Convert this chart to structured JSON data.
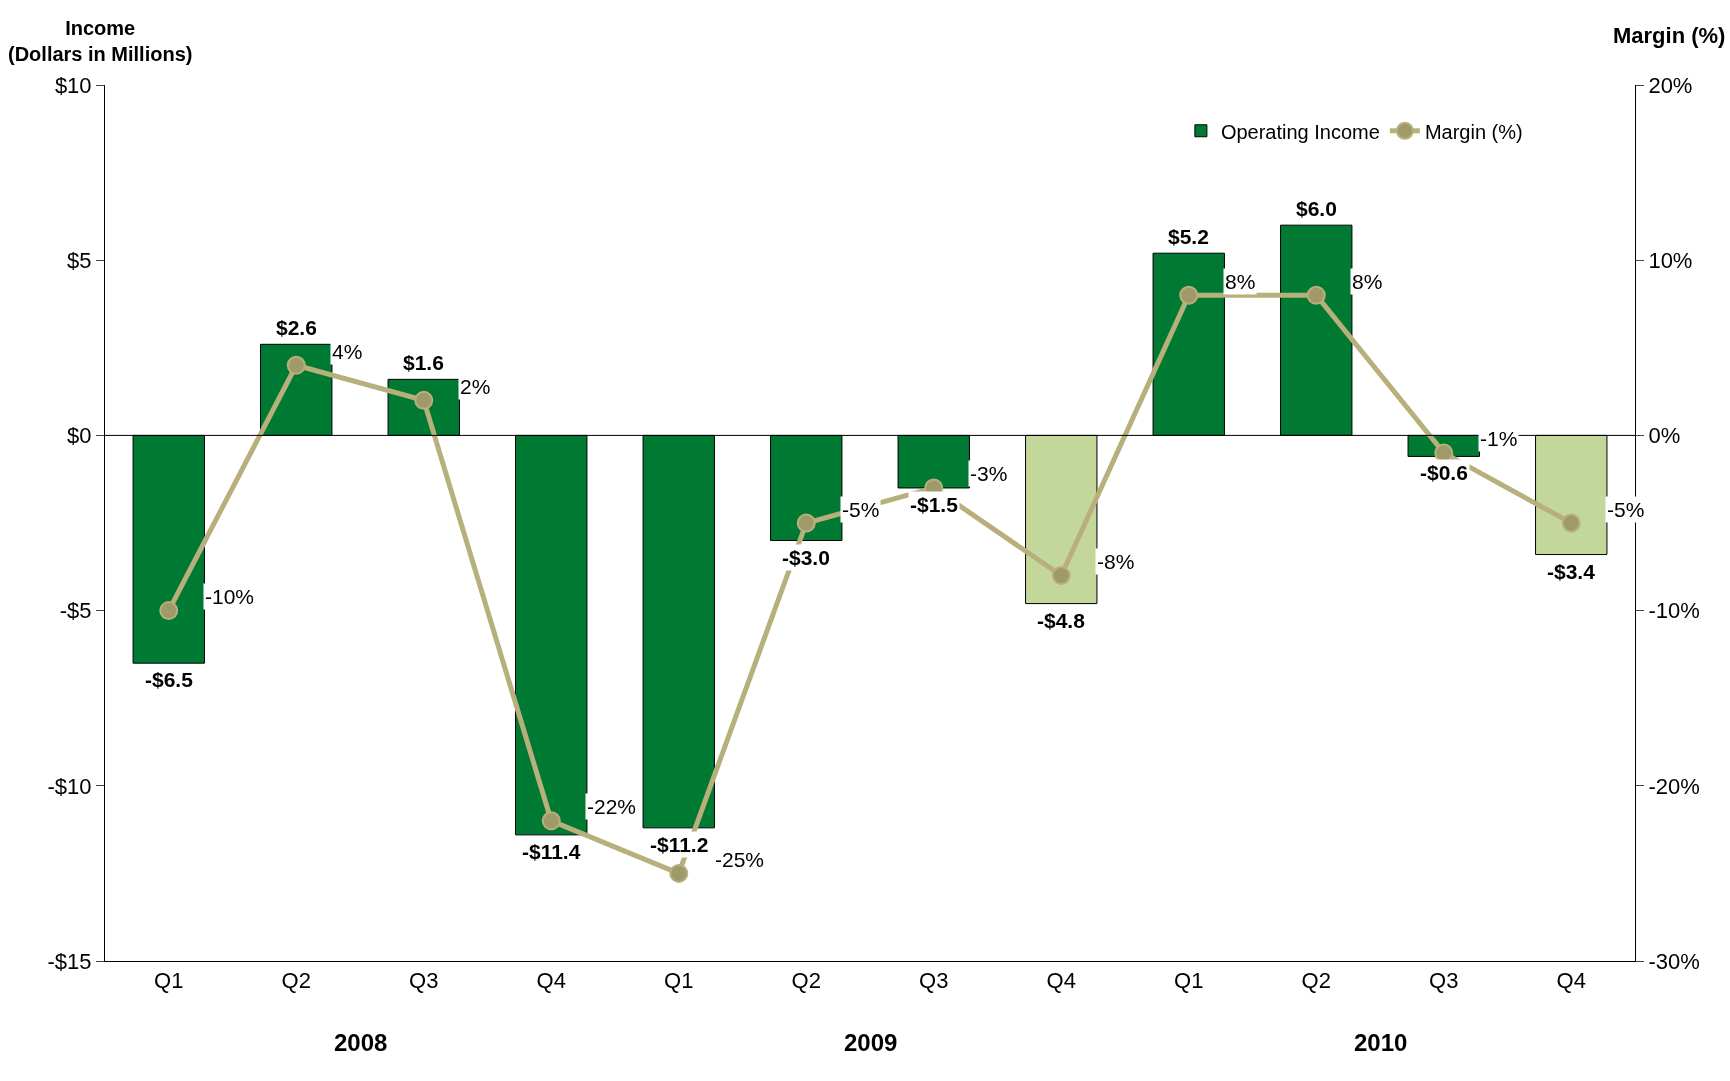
{
  "chart_data": {
    "type": "bar",
    "ylabel": "Income\n(Dollars in Millions)",
    "y2label": "Margin (%)",
    "categories": [
      "Q1",
      "Q2",
      "Q3",
      "Q4",
      "Q1",
      "Q2",
      "Q3",
      "Q4",
      "Q1",
      "Q2",
      "Q3",
      "Q4"
    ],
    "annotations": [
      "2008",
      "2009",
      "2010"
    ],
    "series": [
      {
        "name": "Operating Income",
        "color": "#007a33",
        "colors": [
          "#007a33",
          "#007a33",
          "#007a33",
          "#007a33",
          "#007a33",
          "#007a33",
          "#007a33",
          "#c4d79b",
          "#007a33",
          "#007a33",
          "#007a33",
          "#c4d79b"
        ],
        "values": [
          -6.5,
          2.6,
          1.6,
          -11.4,
          -11.2,
          -3.0,
          -1.5,
          -4.8,
          5.2,
          6.0,
          -0.6,
          -3.4
        ],
        "value_labels": [
          "-$6.5",
          "$2.6",
          "$1.6",
          "-$11.4",
          "-$11.2",
          "-$3.0",
          "-$1.5",
          "-$4.8",
          "$5.2",
          "$6.0",
          "-$0.6",
          "-$3.4"
        ]
      },
      {
        "name": "Margin (%)",
        "type": "line",
        "axis": "y2",
        "color": "#b8b07c",
        "marker": "circle",
        "values": [
          -10,
          4,
          2,
          -22,
          -25,
          -5,
          -3,
          -8,
          8,
          8,
          -1,
          -5
        ],
        "value_labels": [
          "-10%",
          "4%",
          "2%",
          "-22%",
          "-25%",
          "-5%",
          "-3%",
          "-8%",
          "8%",
          "8%",
          "-1%",
          "-5%"
        ]
      }
    ],
    "ylim": [
      -15,
      10
    ],
    "yticks": [
      {
        "value": -15,
        "label": "-$15"
      },
      {
        "value": -10,
        "label": "-$10"
      },
      {
        "value": -5,
        "label": "-$5"
      },
      {
        "value": 0,
        "label": "$0"
      },
      {
        "value": 5,
        "label": "$5"
      },
      {
        "value": 10,
        "label": "$10"
      }
    ],
    "y2lim": [
      -30,
      20
    ],
    "y2ticks": [
      {
        "value": -30,
        "label": "-30%"
      },
      {
        "value": -20,
        "label": "-20%"
      },
      {
        "value": -10,
        "label": "-10%"
      },
      {
        "value": 0,
        "label": "0%"
      },
      {
        "value": 10,
        "label": "10%"
      },
      {
        "value": 20,
        "label": "20%"
      }
    ],
    "ref_lines": [
      {
        "axis": "y",
        "value": 0,
        "color": "#000000"
      }
    ],
    "legend": "top right"
  }
}
